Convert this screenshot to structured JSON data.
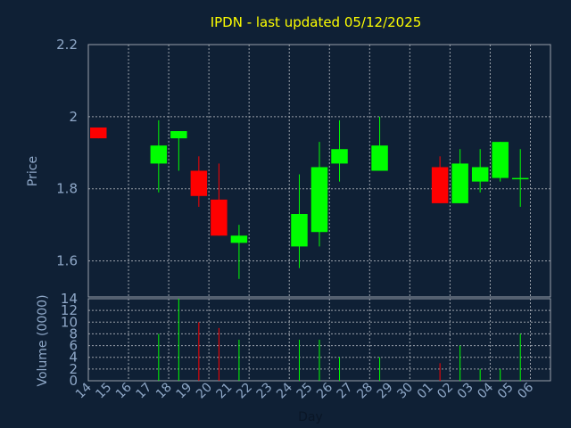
{
  "chart_data": {
    "type": "candlestick",
    "title": "IPDN - last updated 05/12/2025",
    "price_panel": {
      "ylabel": "Price",
      "ylim": [
        1.5,
        2.2
      ],
      "yticks": [
        {
          "value": 1.6,
          "label": "1.6"
        },
        {
          "value": 1.8,
          "label": "1.8"
        },
        {
          "value": 2.0,
          "label": "2"
        },
        {
          "value": 2.2,
          "label": "2.2"
        }
      ]
    },
    "volume_panel": {
      "ylabel": "Volume (0000)",
      "ylim": [
        0,
        14
      ],
      "yticks": [
        {
          "value": 0,
          "label": "0"
        },
        {
          "value": 2,
          "label": "2"
        },
        {
          "value": 4,
          "label": "4"
        },
        {
          "value": 6,
          "label": "6"
        },
        {
          "value": 8,
          "label": "8"
        },
        {
          "value": 10,
          "label": "10"
        },
        {
          "value": 12,
          "label": "12"
        },
        {
          "value": 14,
          "label": "14"
        }
      ]
    },
    "xlabel": "Day",
    "x_ticks": [
      "14",
      "15",
      "16",
      "17",
      "18",
      "19",
      "20",
      "21",
      "22",
      "23",
      "24",
      "25",
      "26",
      "27",
      "28",
      "29",
      "30",
      "01",
      "02",
      "03",
      "04",
      "05",
      "06"
    ],
    "colors": {
      "up": "#00ff00",
      "down": "#ff0000",
      "grid": "#9aa0aa",
      "background": "#0f2035",
      "title": "#ffff00",
      "axis_text": "#8fa8c8"
    },
    "candles": [
      {
        "slot": 0,
        "open": 1.97,
        "close": 1.94,
        "high": 1.97,
        "low": 1.94,
        "volume": 0
      },
      {
        "slot": 3,
        "open": 1.87,
        "close": 1.92,
        "high": 1.99,
        "low": 1.79,
        "volume": 8
      },
      {
        "slot": 4,
        "open": 1.94,
        "close": 1.96,
        "high": 1.96,
        "low": 1.85,
        "volume": 14
      },
      {
        "slot": 5,
        "open": 1.85,
        "close": 1.78,
        "high": 1.89,
        "low": 1.75,
        "volume": 10
      },
      {
        "slot": 6,
        "open": 1.77,
        "close": 1.67,
        "high": 1.87,
        "low": 1.67,
        "volume": 9
      },
      {
        "slot": 7,
        "open": 1.65,
        "close": 1.67,
        "high": 1.7,
        "low": 1.55,
        "volume": 7
      },
      {
        "slot": 10,
        "open": 1.64,
        "close": 1.73,
        "high": 1.84,
        "low": 1.58,
        "volume": 7
      },
      {
        "slot": 11,
        "open": 1.68,
        "close": 1.86,
        "high": 1.93,
        "low": 1.64,
        "volume": 7
      },
      {
        "slot": 12,
        "open": 1.87,
        "close": 1.91,
        "high": 1.99,
        "low": 1.82,
        "volume": 4
      },
      {
        "slot": 14,
        "open": 1.85,
        "close": 1.92,
        "high": 2.0,
        "low": 1.85,
        "volume": 4
      },
      {
        "slot": 17,
        "open": 1.86,
        "close": 1.76,
        "high": 1.89,
        "low": 1.76,
        "volume": 3
      },
      {
        "slot": 18,
        "open": 1.76,
        "close": 1.87,
        "high": 1.91,
        "low": 1.76,
        "volume": 6
      },
      {
        "slot": 19,
        "open": 1.82,
        "close": 1.86,
        "high": 1.91,
        "low": 1.79,
        "volume": 2
      },
      {
        "slot": 20,
        "open": 1.83,
        "close": 1.93,
        "high": 1.93,
        "low": 1.82,
        "volume": 2
      },
      {
        "slot": 21,
        "open": 1.83,
        "close": 1.83,
        "high": 1.91,
        "low": 1.75,
        "volume": 8
      }
    ],
    "grid": true
  }
}
